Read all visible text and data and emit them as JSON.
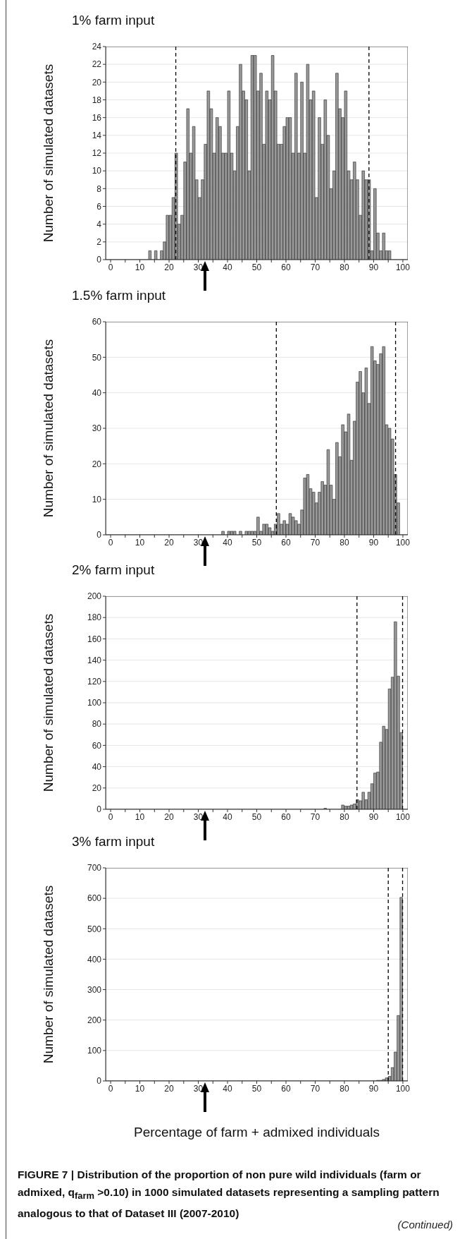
{
  "chart_data": [
    {
      "type": "histogram",
      "title": "1% farm input",
      "ylabel": "Number of simulated datasets",
      "color": "#999999",
      "bins": [
        13,
        14,
        15,
        16,
        17,
        18,
        19,
        20,
        21,
        22,
        23,
        24,
        25,
        26,
        27,
        28,
        29,
        30,
        31,
        32,
        33,
        34,
        35,
        36,
        37,
        38,
        39,
        40,
        41,
        42,
        43,
        44,
        45,
        46,
        47,
        48,
        49,
        50,
        51,
        52,
        53,
        54,
        55,
        56,
        57,
        58,
        59,
        60,
        61,
        62,
        63,
        64,
        65,
        66,
        67,
        68,
        69,
        70,
        71,
        72,
        73,
        74,
        75,
        76,
        77,
        78,
        79,
        80,
        81,
        82,
        83,
        84,
        85,
        86,
        87,
        88,
        89,
        90,
        91,
        92,
        93,
        94,
        95,
        96
      ],
      "values": [
        1,
        0,
        1,
        0,
        1,
        2,
        5,
        5,
        7,
        12,
        4,
        5,
        11,
        17,
        12,
        15,
        9,
        7,
        9,
        13,
        19,
        17,
        12,
        16,
        15,
        12,
        12,
        19,
        12,
        10,
        15,
        22,
        19,
        18,
        10,
        23,
        23,
        19,
        21,
        13,
        19,
        18,
        23,
        19,
        13,
        13,
        15,
        16,
        16,
        12,
        21,
        12,
        20,
        12,
        22,
        18,
        19,
        7,
        16,
        13,
        18,
        14,
        8,
        10,
        21,
        17,
        16,
        19,
        10,
        9,
        11,
        9,
        5,
        10,
        9,
        9,
        1,
        8,
        3,
        1,
        3,
        1,
        1
      ],
      "xlim": [
        -1.7,
        101.7
      ],
      "xticks": [
        0,
        {
          "value": 5,
          "label": null
        },
        10,
        {
          "value": 15,
          "label": null
        },
        20,
        {
          "value": 25,
          "label": null
        },
        30,
        {
          "value": 35,
          "label": null
        },
        40,
        {
          "value": 45,
          "label": null
        },
        50,
        {
          "value": 55,
          "label": null
        },
        60,
        {
          "value": 65,
          "label": null
        },
        70,
        {
          "value": 75,
          "label": null
        },
        80,
        {
          "value": 85,
          "label": null
        },
        90,
        {
          "value": 95,
          "label": null
        },
        100
      ],
      "ylim": [
        0,
        24
      ],
      "yticks": [
        0,
        2,
        4,
        6,
        8,
        10,
        12,
        14,
        16,
        18,
        20,
        22,
        24
      ],
      "grid": "y",
      "ref_lines": [
        {
          "axis": "x",
          "value": 22.3,
          "line_style": "dashed",
          "color": "#000000"
        },
        {
          "axis": "x",
          "value": 88.4,
          "line_style": "dashed",
          "color": "#000000"
        }
      ]
    },
    {
      "type": "histogram",
      "title": "1.5% farm input",
      "ylabel": "Number of simulated datasets",
      "color": "#999999",
      "bins": [
        38,
        39,
        40,
        41,
        42,
        43,
        44,
        45,
        46,
        47,
        48,
        49,
        50,
        51,
        52,
        53,
        54,
        55,
        56,
        57,
        58,
        59,
        60,
        61,
        62,
        63,
        64,
        65,
        66,
        67,
        68,
        69,
        70,
        71,
        72,
        73,
        74,
        75,
        76,
        77,
        78,
        79,
        80,
        81,
        82,
        83,
        84,
        85,
        86,
        87,
        88,
        89,
        90,
        91,
        92,
        93,
        94,
        95,
        96,
        97,
        98,
        99
      ],
      "values": [
        1,
        0,
        1,
        1,
        1,
        0,
        1,
        0,
        1,
        1,
        1,
        1,
        5,
        1,
        3,
        3,
        2,
        1,
        3,
        6,
        3,
        4,
        3,
        6,
        5,
        4,
        3,
        7,
        16,
        17,
        13,
        12,
        9,
        12,
        15,
        14,
        24,
        14,
        10,
        26,
        22,
        31,
        29,
        34,
        21,
        32,
        43,
        46,
        40,
        47,
        37,
        53,
        49,
        48,
        51,
        53,
        31,
        30,
        27,
        17,
        9
      ],
      "xlim": [
        -1.7,
        101.7
      ],
      "xticks": [
        0,
        {
          "value": 5,
          "label": null
        },
        10,
        {
          "value": 15,
          "label": null
        },
        20,
        {
          "value": 25,
          "label": null
        },
        30,
        {
          "value": 35,
          "label": null
        },
        40,
        {
          "value": 45,
          "label": null
        },
        50,
        {
          "value": 55,
          "label": null
        },
        60,
        {
          "value": 65,
          "label": null
        },
        70,
        {
          "value": 75,
          "label": null
        },
        80,
        {
          "value": 85,
          "label": null
        },
        90,
        {
          "value": 95,
          "label": null
        },
        100
      ],
      "ylim": [
        0,
        60
      ],
      "yticks": [
        0,
        10,
        20,
        30,
        40,
        50,
        60
      ],
      "grid": "y",
      "ref_lines": [
        {
          "axis": "x",
          "value": 56.7,
          "line_style": "dashed",
          "color": "#000000"
        },
        {
          "axis": "x",
          "value": 97.5,
          "line_style": "dashed",
          "color": "#000000"
        }
      ]
    },
    {
      "type": "histogram",
      "title": "2% farm input",
      "ylabel": "Number of simulated datasets",
      "color": "#999999",
      "bins": [
        72,
        73,
        74,
        75,
        76,
        77,
        78,
        79,
        80,
        81,
        82,
        83,
        84,
        85,
        86,
        87,
        88,
        89,
        90,
        91,
        92,
        93,
        94,
        95,
        96,
        97,
        98,
        99,
        100
      ],
      "values": [
        null,
        1,
        0,
        0,
        0,
        null,
        null,
        4,
        3,
        3,
        4,
        5,
        9,
        8,
        16,
        9,
        16,
        24,
        34,
        35,
        63,
        78,
        75,
        113,
        124,
        176,
        125,
        72
      ],
      "xlim": [
        -1.7,
        101.7
      ],
      "xticks": [
        0,
        {
          "value": 5,
          "label": null
        },
        10,
        {
          "value": 15,
          "label": null
        },
        20,
        {
          "value": 25,
          "label": null
        },
        30,
        {
          "value": 35,
          "label": null
        },
        40,
        {
          "value": 45,
          "label": null
        },
        50,
        {
          "value": 55,
          "label": null
        },
        60,
        {
          "value": 65,
          "label": null
        },
        70,
        {
          "value": 75,
          "label": null
        },
        80,
        {
          "value": 85,
          "label": null
        },
        90,
        {
          "value": 95,
          "label": null
        },
        100
      ],
      "ylim": [
        0,
        200
      ],
      "yticks": [
        0,
        20,
        40,
        60,
        80,
        100,
        120,
        140,
        160,
        180,
        200
      ],
      "grid": "y",
      "ref_lines": [
        {
          "axis": "x",
          "value": 84.3,
          "line_style": "dashed",
          "color": "#000000"
        },
        {
          "axis": "x",
          "value": 99.9,
          "line_style": "dashed",
          "color": "#000000"
        }
      ]
    },
    {
      "type": "histogram",
      "title": "3% farm input",
      "ylabel": "Number of simulated datasets",
      "xlabel": "Percentage of farm + admixed individuals",
      "color": "#999999",
      "bins": [
        85,
        86,
        87,
        88,
        89,
        90,
        91,
        92,
        93,
        94,
        95,
        96,
        97,
        98,
        99,
        100
      ],
      "values": [
        null,
        0,
        0,
        0,
        0,
        0,
        2,
        2,
        5,
        10,
        15,
        44,
        95,
        215,
        603
      ],
      "xlim": [
        -1.7,
        101.7
      ],
      "xticks": [
        0,
        {
          "value": 5,
          "label": null
        },
        10,
        {
          "value": 15,
          "label": null
        },
        20,
        {
          "value": 25,
          "label": null
        },
        30,
        {
          "value": 35,
          "label": null
        },
        40,
        {
          "value": 45,
          "label": null
        },
        50,
        {
          "value": 55,
          "label": null
        },
        60,
        {
          "value": 65,
          "label": null
        },
        70,
        {
          "value": 75,
          "label": null
        },
        80,
        {
          "value": 85,
          "label": null
        },
        90,
        {
          "value": 95,
          "label": null
        },
        100
      ],
      "ylim": [
        0,
        700
      ],
      "yticks": [
        0,
        100,
        200,
        300,
        400,
        500,
        600,
        700
      ],
      "grid": "y",
      "ref_lines": [
        {
          "axis": "x",
          "value": 95.0,
          "line_style": "dashed",
          "color": "#000000"
        },
        {
          "axis": "x",
          "value": 99.9,
          "line_style": "dashed",
          "color": "#000000"
        }
      ],
      "annotations": [
        "FIGURE 7 | Distribution of the proportion of non pure wild individuals (farm or admixed, q$_{farm}$ >0.10) in 1000 simulated datasets representing a sampling pattern analogous to that of Dataset III (2007-2010)",
        "(Continued)"
      ]
    }
  ]
}
